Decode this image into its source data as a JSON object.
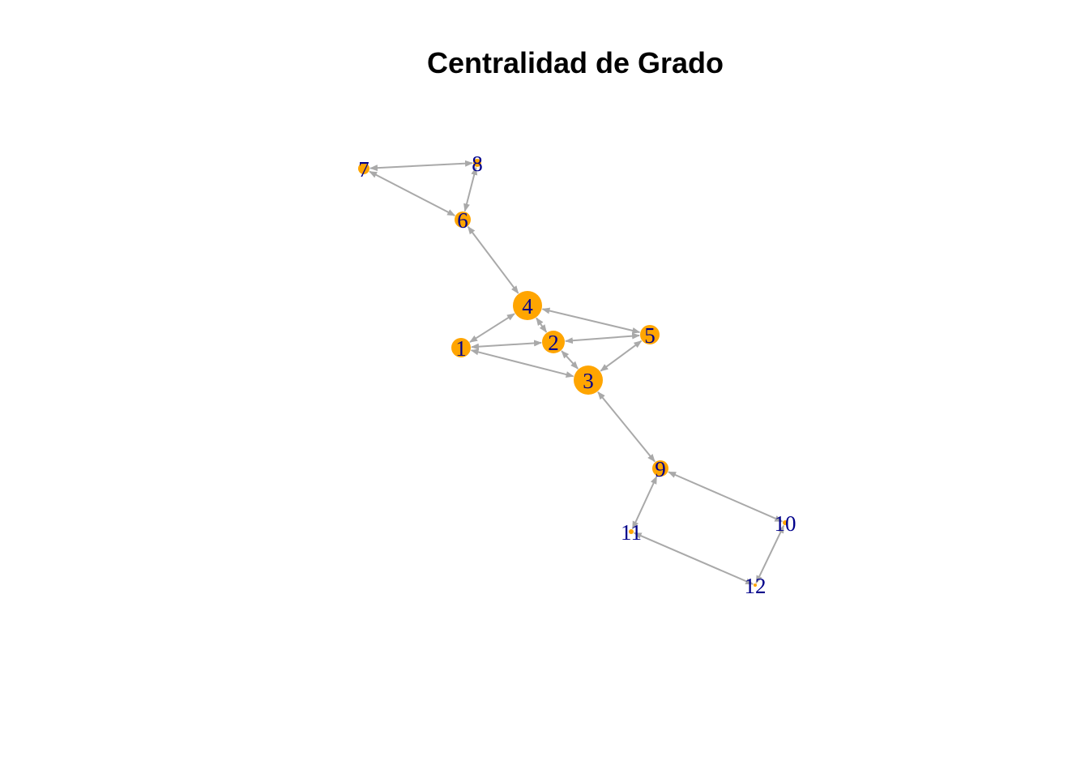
{
  "title": "Centralidad de Grado",
  "colors": {
    "node_fill": "#FFA500",
    "label": "#00008B",
    "edge": "#A9A9A9",
    "background": "#FFFFFF"
  },
  "nodes": [
    {
      "id": "1",
      "label": "1"
    },
    {
      "id": "2",
      "label": "2"
    },
    {
      "id": "3",
      "label": "3"
    },
    {
      "id": "4",
      "label": "4"
    },
    {
      "id": "5",
      "label": "5"
    },
    {
      "id": "6",
      "label": "6"
    },
    {
      "id": "7",
      "label": "7"
    },
    {
      "id": "8",
      "label": "8"
    },
    {
      "id": "9",
      "label": "9"
    },
    {
      "id": "10",
      "label": "10"
    },
    {
      "id": "11",
      "label": "11"
    },
    {
      "id": "12",
      "label": "12"
    }
  ],
  "edges": [
    {
      "from": "7",
      "to": "8"
    },
    {
      "from": "8",
      "to": "6"
    },
    {
      "from": "7",
      "to": "6"
    },
    {
      "from": "6",
      "to": "4"
    },
    {
      "from": "4",
      "to": "1"
    },
    {
      "from": "4",
      "to": "5"
    },
    {
      "from": "4",
      "to": "2"
    },
    {
      "from": "1",
      "to": "2"
    },
    {
      "from": "2",
      "to": "5"
    },
    {
      "from": "1",
      "to": "3"
    },
    {
      "from": "2",
      "to": "3"
    },
    {
      "from": "5",
      "to": "3"
    },
    {
      "from": "3",
      "to": "9"
    },
    {
      "from": "9",
      "to": "11"
    },
    {
      "from": "9",
      "to": "10"
    },
    {
      "from": "11",
      "to": "12"
    },
    {
      "from": "10",
      "to": "12"
    }
  ]
}
